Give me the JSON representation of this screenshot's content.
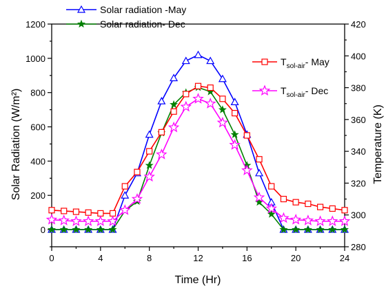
{
  "chart_data": {
    "type": "line",
    "title": "",
    "xlabel": "Time (Hr)",
    "ylabel_left": "Solar Radiation (W/m²)",
    "ylabel_right": "Temperature (K)",
    "xlim": [
      0,
      24
    ],
    "ylim_left": [
      -100,
      1200
    ],
    "ylim_right": [
      280,
      420
    ],
    "x_ticks": [
      0,
      4,
      8,
      12,
      16,
      20,
      24
    ],
    "y_left_ticks": [
      0,
      200,
      400,
      600,
      800,
      1000,
      1200
    ],
    "y_right_ticks": [
      280,
      300,
      320,
      340,
      360,
      380,
      400,
      420
    ],
    "grid": false,
    "x": [
      0,
      1,
      2,
      3,
      4,
      5,
      6,
      7,
      8,
      9,
      10,
      11,
      12,
      13,
      14,
      15,
      16,
      17,
      18,
      19,
      20,
      21,
      22,
      23,
      24
    ],
    "series": [
      {
        "name": "Solar radiation -May",
        "axis": "left",
        "color": "#0000ff",
        "marker": "triangle-up",
        "legend_group": "top",
        "values": [
          0,
          0,
          0,
          0,
          0,
          0,
          200,
          330,
          555,
          750,
          885,
          985,
          1020,
          985,
          880,
          745,
          555,
          330,
          160,
          0,
          0,
          0,
          0,
          0,
          0
        ]
      },
      {
        "name": "Solar radiation- Dec",
        "axis": "left",
        "color": "#008000",
        "marker": "star",
        "legend_group": "top",
        "values": [
          0,
          0,
          0,
          0,
          0,
          0,
          110,
          165,
          375,
          565,
          730,
          800,
          830,
          805,
          700,
          555,
          375,
          160,
          90,
          0,
          0,
          0,
          0,
          0,
          0
        ]
      },
      {
        "name_main": "T",
        "name_sub": "sol-air",
        "name_suffix": "- May",
        "axis": "right",
        "color": "#ff0000",
        "marker": "square",
        "legend_group": "right",
        "values": [
          303,
          302.5,
          302,
          301.5,
          301,
          301,
          318,
          327,
          340,
          352,
          365,
          376,
          381,
          380,
          373,
          364,
          350,
          335,
          318,
          310,
          308,
          307,
          305,
          304,
          303
        ]
      },
      {
        "name_main": "T",
        "name_sub": "sol-air",
        "name_suffix": "- Dec",
        "axis": "right",
        "color": "#ff00ff",
        "marker": "star-open",
        "legend_group": "right",
        "values": [
          297,
          296.5,
          296,
          296,
          296,
          296,
          303,
          310,
          324,
          338,
          355,
          368,
          373,
          370,
          358,
          344,
          328,
          311,
          304,
          298,
          297,
          296.5,
          296,
          296,
          296
        ]
      }
    ]
  }
}
